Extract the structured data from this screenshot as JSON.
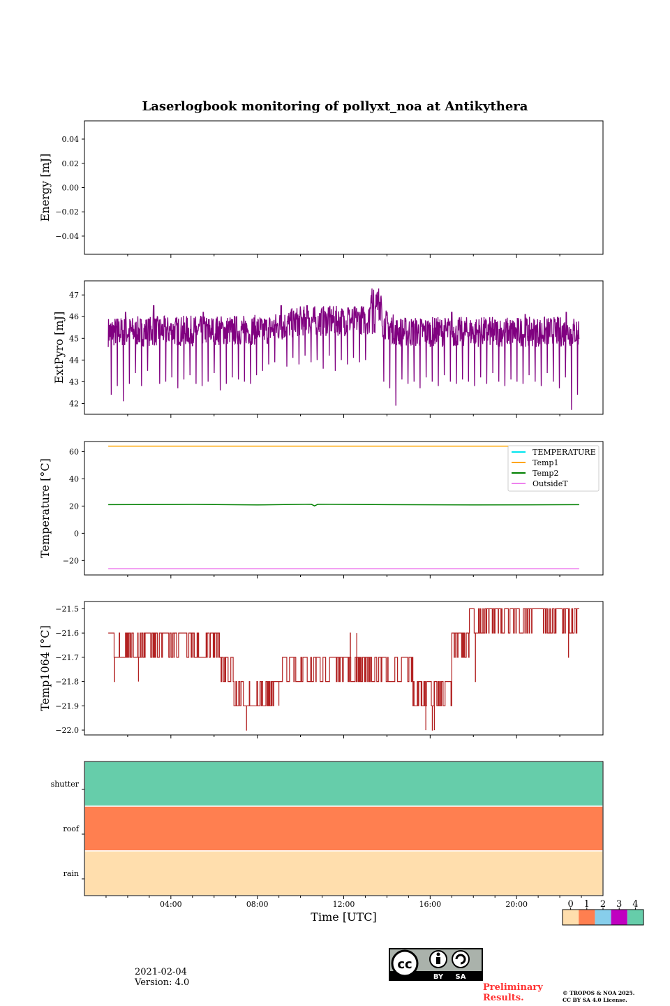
{
  "page": {
    "date": "2021-02-04",
    "version": "Version: 4.0",
    "preliminary": "Preliminary Results.",
    "copyright": "© TROPOS & NOA 2025.",
    "license": "CC BY SA 4.0 License.",
    "cc_labels": {
      "cc": "cc",
      "by": "BY",
      "sa": "SA"
    }
  },
  "chart_data": [
    {
      "id": "energy",
      "type": "line",
      "title": "Laserlogbook monitoring of pollyxt_noa at Antikythera",
      "xlabel": "",
      "ylabel": "Energy [mJ]",
      "xlim": [
        0,
        24
      ],
      "ylim": [
        -0.055,
        0.055
      ],
      "yticks": [
        0.04,
        0.02,
        0.0,
        -0.02,
        -0.04
      ],
      "ytick_labels": [
        "0.04",
        "0.02",
        "0.00",
        "−0.02",
        "−0.04"
      ],
      "series": []
    },
    {
      "id": "extpyro",
      "type": "line",
      "ylabel": "ExtPyro [mJ]",
      "xlim": [
        0,
        24
      ],
      "ylim": [
        41.5,
        47.65
      ],
      "yticks": [
        47,
        46,
        45,
        44,
        43,
        42
      ],
      "ytick_labels": [
        "47",
        "46",
        "45",
        "44",
        "43",
        "42"
      ],
      "series": [
        {
          "name": "ExtPyro",
          "color": "#800080",
          "x_start": 1.1,
          "x_end": 22.9,
          "baseline": [
            [
              1.1,
              45.3
            ],
            [
              8.5,
              45.4
            ],
            [
              10.0,
              45.8
            ],
            [
              12.0,
              45.8
            ],
            [
              13.5,
              45.9
            ],
            [
              14.5,
              45.3
            ],
            [
              23.0,
              45.3
            ]
          ],
          "drops": [
            42.4,
            42.8,
            42.1,
            42.9,
            43.4,
            42.8,
            43.5,
            42.6,
            42.9,
            43.0,
            43.2,
            42.7,
            43.1,
            43.3,
            42.9,
            42.8,
            43.0,
            43.4,
            42.6,
            42.9,
            43.2,
            43.1,
            43.0,
            42.9,
            43.3,
            43.5,
            43.8,
            43.9,
            44.0,
            43.7,
            44.1,
            43.8,
            44.2,
            43.9,
            44.0,
            43.6,
            44.2,
            43.5,
            44.0,
            43.8,
            44.1,
            43.9,
            44.0,
            43.5,
            42.8,
            43.0,
            42.7,
            41.9,
            43.1,
            42.9,
            43.0,
            42.7,
            43.2,
            43.0,
            42.8,
            43.3,
            43.0,
            42.9,
            43.1,
            43.0,
            42.8,
            43.2,
            42.9,
            43.4,
            43.0,
            42.8,
            43.1,
            43.0,
            42.9,
            43.3,
            43.0,
            42.8,
            43.4,
            43.0,
            42.7,
            43.2,
            41.7
          ],
          "peaks": [
            [
              1.9,
              46.2
            ],
            [
              3.2,
              46.5
            ],
            [
              5.5,
              46.2
            ],
            [
              9.1,
              46.5
            ],
            [
              10.3,
              46.5
            ],
            [
              11.3,
              46.4
            ],
            [
              12.2,
              46.4
            ],
            [
              13.3,
              47.3
            ],
            [
              13.6,
              47.3
            ],
            [
              17.0,
              46.2
            ],
            [
              20.4,
              46.1
            ],
            [
              22.3,
              46.2
            ]
          ]
        }
      ]
    },
    {
      "id": "temperature",
      "type": "line",
      "ylabel": "Temperature [°C]",
      "xlim": [
        0,
        24
      ],
      "ylim": [
        -30.6,
        67.4
      ],
      "yticks": [
        60,
        40,
        20,
        0,
        -20
      ],
      "ytick_labels": [
        "60",
        "40",
        "20",
        "0",
        "−20"
      ],
      "legend_position": "top-right",
      "series": [
        {
          "name": "TEMPERATURE",
          "color": "#00e5ee",
          "points": []
        },
        {
          "name": "Temp1",
          "color": "#ffa500",
          "points": [
            [
              1.1,
              64.0
            ],
            [
              22.9,
              64.0
            ]
          ]
        },
        {
          "name": "Temp2",
          "color": "#008000",
          "points": [
            [
              1.1,
              21.0
            ],
            [
              5.0,
              21.2
            ],
            [
              8.0,
              20.8
            ],
            [
              10.5,
              21.3
            ],
            [
              10.65,
              20.1
            ],
            [
              10.8,
              21.3
            ],
            [
              14.0,
              21.0
            ],
            [
              18.0,
              20.8
            ],
            [
              22.9,
              21.0
            ]
          ]
        },
        {
          "name": "OutsideT",
          "color": "#ee82ee",
          "points": [
            [
              1.1,
              -26.0
            ],
            [
              22.9,
              -26.0
            ]
          ]
        }
      ]
    },
    {
      "id": "temp1064",
      "type": "line",
      "ylabel": "Temp1064 [°C]",
      "xlim": [
        0,
        24
      ],
      "ylim": [
        -22.02,
        -21.47
      ],
      "yticks": [
        -21.5,
        -21.6,
        -21.7,
        -21.8,
        -21.9,
        -22.0
      ],
      "ytick_labels": [
        "−21.5",
        "−21.6",
        "−21.7",
        "−21.8",
        "−21.9",
        "−22.0"
      ],
      "series": [
        {
          "name": "Temp1064",
          "color": "#b22222",
          "segments": [
            {
              "from": 1.1,
              "to": 6.25,
              "levels": [
                -21.6,
                -21.7
              ]
            },
            {
              "from": 6.25,
              "to": 6.9,
              "levels": [
                -21.7,
                -21.8
              ]
            },
            {
              "from": 6.9,
              "to": 9.0,
              "levels": [
                -21.8,
                -21.9
              ]
            },
            {
              "from": 9.0,
              "to": 12.0,
              "levels": [
                -21.7,
                -21.8
              ]
            },
            {
              "from": 12.0,
              "to": 15.2,
              "levels": [
                -21.7,
                -21.8
              ]
            },
            {
              "from": 15.2,
              "to": 17.0,
              "levels": [
                -21.8,
                -21.9
              ]
            },
            {
              "from": 17.0,
              "to": 17.8,
              "levels": [
                -21.7,
                -21.6
              ]
            },
            {
              "from": 17.8,
              "to": 22.9,
              "levels": [
                -21.6,
                -21.5
              ]
            }
          ],
          "spikes": [
            [
              2.5,
              -21.8
            ],
            [
              1.4,
              -21.8
            ],
            [
              7.5,
              -22.0
            ],
            [
              15.8,
              -22.0
            ],
            [
              16.1,
              -22.0
            ],
            [
              16.2,
              -22.0
            ],
            [
              12.3,
              -21.6
            ],
            [
              12.6,
              -21.6
            ],
            [
              18.1,
              -21.8
            ],
            [
              22.4,
              -21.7
            ]
          ]
        }
      ]
    },
    {
      "id": "status",
      "type": "heatmap",
      "xlabel": "Time [UTC]",
      "xlim": [
        0,
        24
      ],
      "xticks": [
        4,
        8,
        12,
        16,
        20
      ],
      "xtick_labels": [
        "04:00",
        "08:00",
        "12:00",
        "16:00",
        "20:00"
      ],
      "rows": [
        "shutter",
        "roof",
        "rain"
      ],
      "row_values": [
        4,
        1,
        0
      ],
      "colorbar": {
        "ticks": [
          "0",
          "1",
          "2",
          "3",
          "4"
        ],
        "colors": [
          "#ffdead",
          "#ff7f50",
          "#87ceeb",
          "#c000c0",
          "#66cdaa"
        ]
      }
    }
  ]
}
